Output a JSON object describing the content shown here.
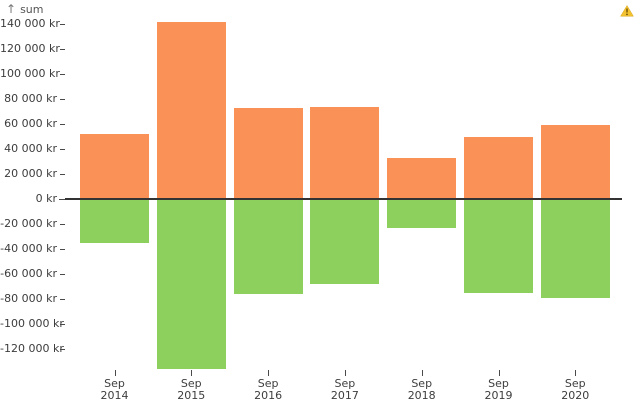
{
  "header": {
    "axis_title": "sum",
    "axis_arrow": "↑"
  },
  "icons": {
    "warning_icon": "warning-triangle"
  },
  "colors": {
    "positive_bar": "#fa9157",
    "negative_bar": "#8dd05e",
    "axis_line": "#333333",
    "tick_text": "#3d3d3d",
    "warning_fill": "#f2c230",
    "warning_mark": "#6b4a00"
  },
  "chart_data": {
    "type": "bar",
    "title": "",
    "ylabel": "sum",
    "xlabel": "",
    "currency": "kr",
    "grid": false,
    "legend": false,
    "categories": [
      "Sep 2014",
      "Sep 2015",
      "Sep 2016",
      "Sep 2017",
      "Sep 2018",
      "Sep 2019",
      "Sep 2020"
    ],
    "series": [
      {
        "name": "positive",
        "color": "#fa9157",
        "values": [
          52000,
          142000,
          73000,
          74000,
          33000,
          50000,
          59000
        ]
      },
      {
        "name": "negative",
        "color": "#8dd05e",
        "values": [
          -35000,
          -136000,
          -76000,
          -68000,
          -23000,
          -75000,
          -79000
        ]
      }
    ],
    "yticks": [
      140000,
      120000,
      100000,
      80000,
      60000,
      40000,
      20000,
      0,
      -20000,
      -40000,
      -60000,
      -80000,
      -100000,
      -120000
    ],
    "ytick_label_format": "#{space-thousands} kr",
    "ylim": [
      -136000,
      144000
    ]
  }
}
